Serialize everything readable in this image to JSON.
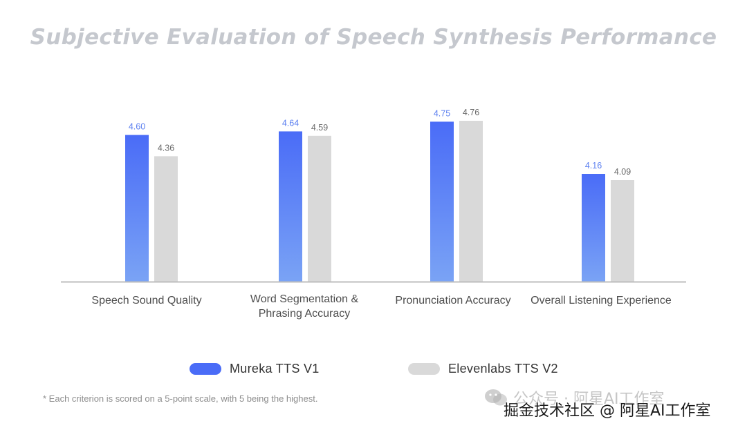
{
  "chart_data": {
    "type": "bar",
    "title": "Subjective Evaluation of Speech Synthesis Performance",
    "categories": [
      "Speech Sound Quality",
      "Word Segmentation & Phrasing Accuracy",
      "Pronunciation Accuracy",
      "Overall Listening Experience"
    ],
    "category_lines": [
      [
        "Speech Sound Quality"
      ],
      [
        "Word Segmentation &",
        "Phrasing Accuracy"
      ],
      [
        "Pronunciation Accuracy"
      ],
      [
        "Overall Listening Experience"
      ]
    ],
    "series": [
      {
        "name": "Mureka TTS V1",
        "values": [
          4.6,
          4.64,
          4.75,
          4.16
        ],
        "labels": [
          "4.60",
          "4.64",
          "4.75",
          "4.16"
        ],
        "color": "#4a6cf7"
      },
      {
        "name": "Elevenlabs TTS V2",
        "values": [
          4.36,
          4.59,
          4.76,
          4.09
        ],
        "labels": [
          "4.36",
          "4.59",
          "4.76",
          "4.09"
        ],
        "color": "#d9d9d9"
      }
    ],
    "xlabel": "",
    "ylabel": "",
    "grid": false,
    "legend": "bottom-center"
  },
  "footnote": "* Each criterion is scored on a 5-point scale, with 5 being the highest.",
  "watermark": {
    "top_text": "公众号 · 阿星AI工作室",
    "bottom_text": "掘金技术社区 @ 阿星AI工作室"
  },
  "colors": {
    "series1_top": "#4a6cf7",
    "series1_bottom": "#7aa3f5",
    "series2": "#d9d9d9",
    "title": "#c5c8ce",
    "label_series1": "#5b7ff0",
    "label_series2": "#6b6b6b",
    "axis": "#bdbdbd"
  }
}
